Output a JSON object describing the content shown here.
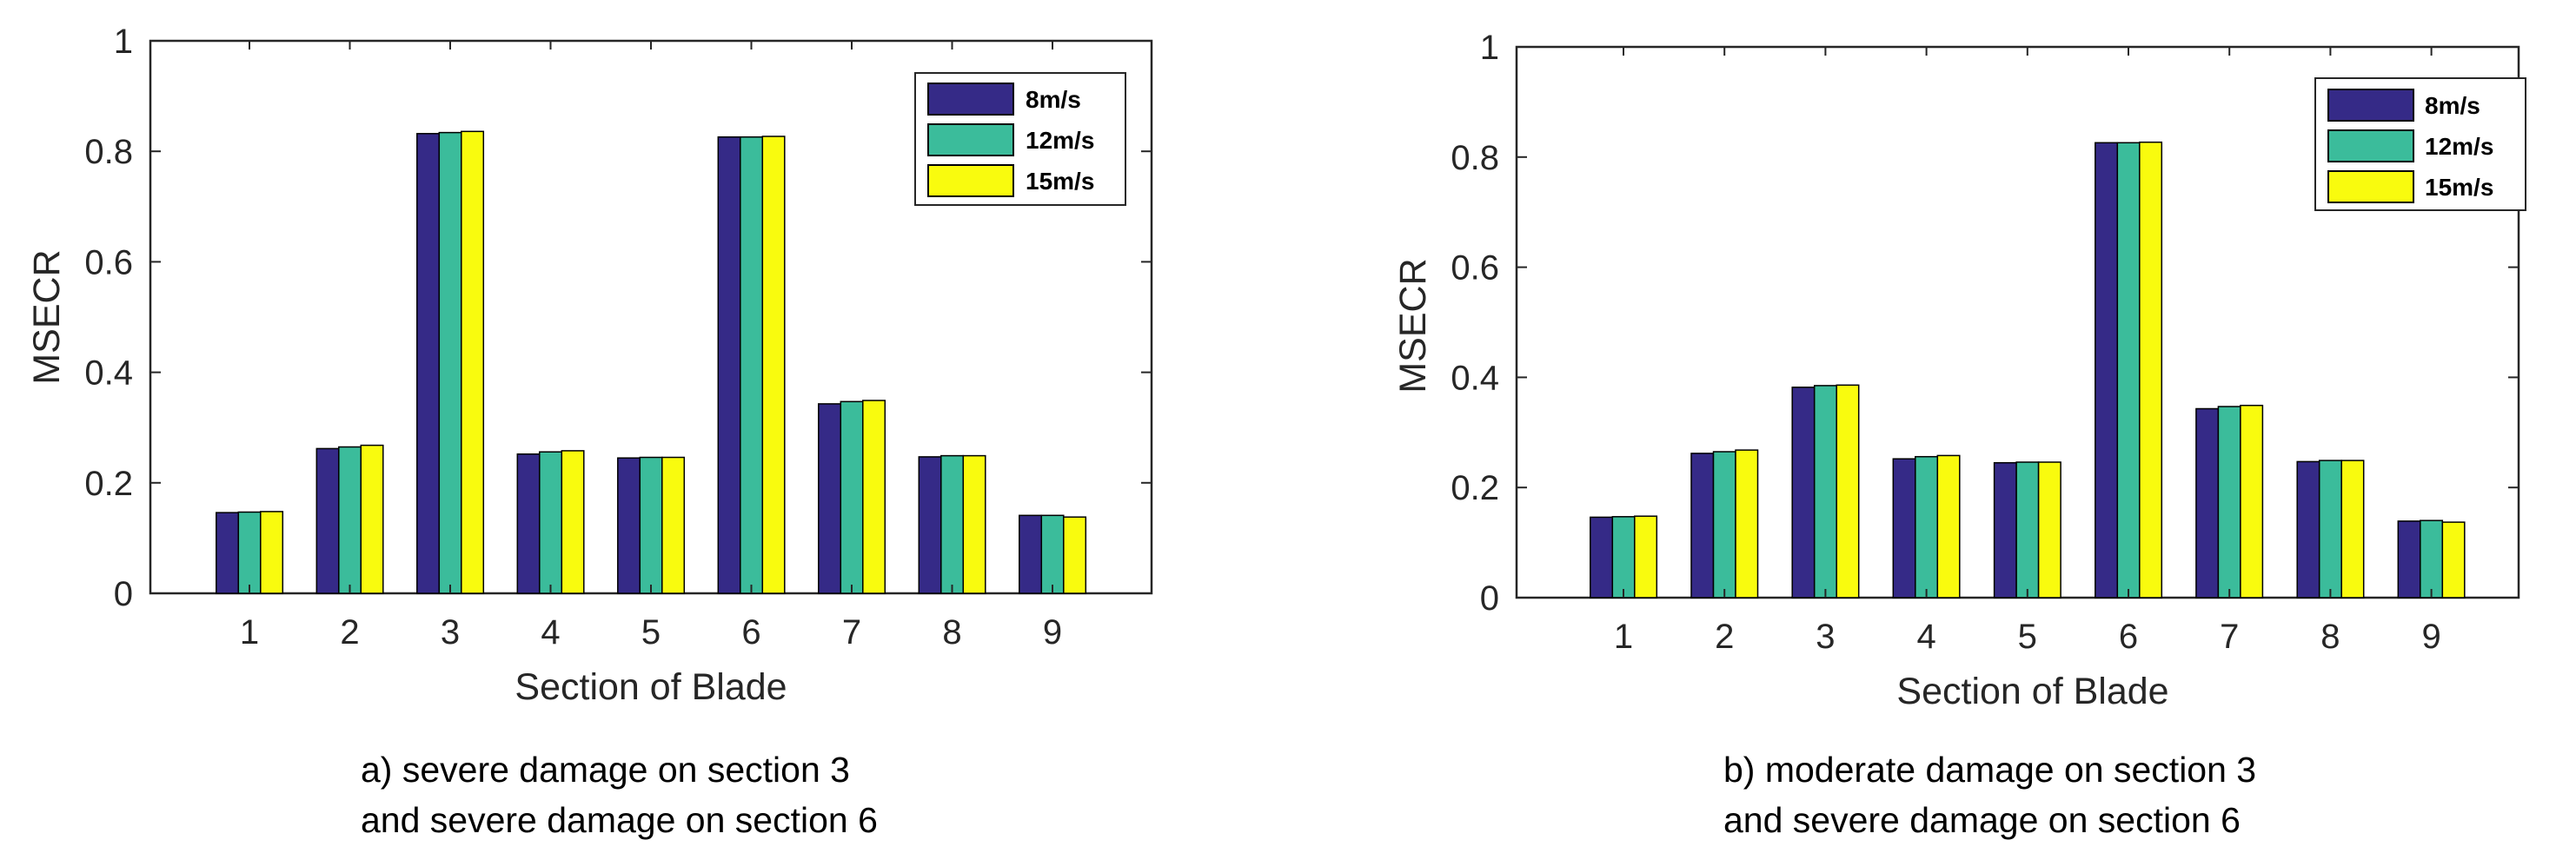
{
  "legend": [
    "8m/s",
    "12m/s",
    "15m/s"
  ],
  "chart_data": [
    {
      "type": "bar",
      "categories": [
        "1",
        "2",
        "3",
        "4",
        "5",
        "6",
        "7",
        "8",
        "9"
      ],
      "series": [
        {
          "name": "8m/s",
          "color": "#352a87",
          "values": [
            0.146,
            0.262,
            0.832,
            0.252,
            0.245,
            0.826,
            0.343,
            0.247,
            0.141
          ]
        },
        {
          "name": "12m/s",
          "color": "#3bbc9b",
          "values": [
            0.147,
            0.265,
            0.834,
            0.256,
            0.246,
            0.826,
            0.347,
            0.249,
            0.141
          ]
        },
        {
          "name": "15m/s",
          "color": "#f9fb0e",
          "values": [
            0.148,
            0.268,
            0.836,
            0.258,
            0.246,
            0.827,
            0.349,
            0.249,
            0.138
          ]
        }
      ],
      "xlabel": "Section of Blade",
      "ylabel": "MSECR",
      "ylim": [
        0,
        1
      ],
      "yticks": [
        "0",
        "0.2",
        "0.4",
        "0.6",
        "0.8",
        "1"
      ],
      "legend_position": "top-right",
      "caption_line1": "a) severe damage on section 3",
      "caption_line2": "and severe damage on section 6"
    },
    {
      "type": "bar",
      "categories": [
        "1",
        "2",
        "3",
        "4",
        "5",
        "6",
        "7",
        "8",
        "9"
      ],
      "series": [
        {
          "name": "8m/s",
          "color": "#352a87",
          "values": [
            0.146,
            0.262,
            0.382,
            0.252,
            0.245,
            0.826,
            0.343,
            0.247,
            0.139
          ]
        },
        {
          "name": "12m/s",
          "color": "#3bbc9b",
          "values": [
            0.147,
            0.265,
            0.385,
            0.256,
            0.246,
            0.826,
            0.347,
            0.249,
            0.14
          ]
        },
        {
          "name": "15m/s",
          "color": "#f9fb0e",
          "values": [
            0.148,
            0.268,
            0.386,
            0.258,
            0.246,
            0.827,
            0.349,
            0.249,
            0.137
          ]
        }
      ],
      "xlabel": "Section of Blade",
      "ylabel": "MSECR",
      "ylim": [
        0,
        1
      ],
      "yticks": [
        "0",
        "0.2",
        "0.4",
        "0.6",
        "0.8",
        "1"
      ],
      "legend_position": "top-right",
      "caption_line1": "b) moderate damage on section 3",
      "caption_line2": "and severe damage on section 6"
    }
  ]
}
